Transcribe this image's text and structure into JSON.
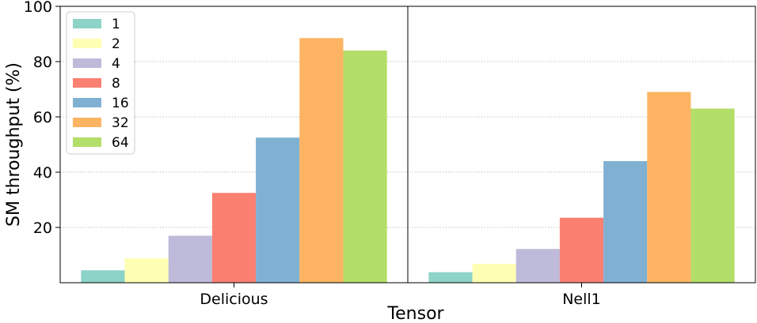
{
  "chart_data": {
    "type": "bar",
    "categories": [
      "Delicious",
      "Nell1"
    ],
    "series": [
      {
        "name": "1",
        "values": [
          4.5,
          3.8
        ],
        "color": "#8dd3c7"
      },
      {
        "name": "2",
        "values": [
          8.8,
          6.8
        ],
        "color": "#ffffb3"
      },
      {
        "name": "4",
        "values": [
          17.0,
          12.2
        ],
        "color": "#bebada"
      },
      {
        "name": "8",
        "values": [
          32.5,
          23.5
        ],
        "color": "#fb8072"
      },
      {
        "name": "16",
        "values": [
          52.5,
          44.0
        ],
        "color": "#80b1d3"
      },
      {
        "name": "32",
        "values": [
          88.5,
          69.0
        ],
        "color": "#fdb462"
      },
      {
        "name": "64",
        "values": [
          84.0,
          63.0
        ],
        "color": "#b3de69"
      }
    ],
    "xlabel": "Tensor",
    "ylabel": "SM throughput (%)",
    "ylim": [
      0,
      100
    ],
    "yticks": [
      20,
      40,
      60,
      80,
      100
    ],
    "grid": "horizontal dotted",
    "legend_position": "top-left"
  }
}
